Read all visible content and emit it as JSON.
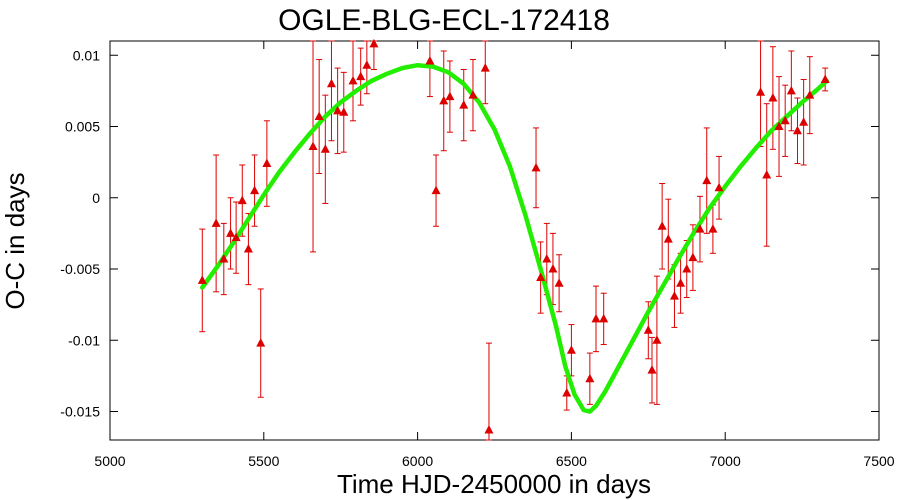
{
  "chart_data": {
    "type": "scatter",
    "title": "OGLE-BLG-ECL-172418",
    "xlabel": "Time HJD-2450000 in days",
    "ylabel": "O-C in days",
    "xlim": [
      5000,
      7500
    ],
    "ylim": [
      -0.017,
      0.011
    ],
    "xticks": [
      5000,
      5500,
      6000,
      6500,
      7000,
      7500
    ],
    "yticks": [
      -0.015,
      -0.01,
      -0.005,
      0,
      0.005,
      0.01
    ],
    "xtick_labels": [
      "5000",
      "5500",
      "6000",
      "6500",
      "7000",
      "7500"
    ],
    "ytick_labels": [
      "-0.015",
      "-0.01",
      "-0.005",
      "0",
      "0.005",
      "0.01"
    ],
    "grid": false,
    "legend": "none",
    "colors": {
      "points": "#dd0000",
      "fit": "#22ee00"
    },
    "observations": [
      {
        "x": 5300,
        "y": -0.0058,
        "err": 0.0036
      },
      {
        "x": 5345,
        "y": -0.0018,
        "err": 0.0048
      },
      {
        "x": 5370,
        "y": -0.0043,
        "err": 0.0025
      },
      {
        "x": 5392,
        "y": -0.0025,
        "err": 0.0025
      },
      {
        "x": 5410,
        "y": -0.0028,
        "err": 0.0025
      },
      {
        "x": 5430,
        "y": -0.0002,
        "err": 0.0025
      },
      {
        "x": 5450,
        "y": -0.0036,
        "err": 0.0025
      },
      {
        "x": 5470,
        "y": 0.0005,
        "err": 0.0025
      },
      {
        "x": 5490,
        "y": -0.0102,
        "err": 0.0038
      },
      {
        "x": 5510,
        "y": 0.0024,
        "err": 0.003
      },
      {
        "x": 5660,
        "y": 0.0036,
        "err": 0.0074
      },
      {
        "x": 5680,
        "y": 0.0057,
        "err": 0.004
      },
      {
        "x": 5700,
        "y": 0.0034,
        "err": 0.0038
      },
      {
        "x": 5720,
        "y": 0.008,
        "err": 0.004
      },
      {
        "x": 5740,
        "y": 0.0061,
        "err": 0.003
      },
      {
        "x": 5760,
        "y": 0.006,
        "err": 0.0028
      },
      {
        "x": 5790,
        "y": 0.0082,
        "err": 0.0028
      },
      {
        "x": 5815,
        "y": 0.0085,
        "err": 0.002
      },
      {
        "x": 5835,
        "y": 0.0093,
        "err": 0.002
      },
      {
        "x": 5858,
        "y": 0.0108,
        "err": 0.0018
      },
      {
        "x": 6040,
        "y": 0.0096,
        "err": 0.0025
      },
      {
        "x": 6060,
        "y": 0.0005,
        "err": 0.0025
      },
      {
        "x": 6085,
        "y": 0.0068,
        "err": 0.0035
      },
      {
        "x": 6105,
        "y": 0.0071,
        "err": 0.0025
      },
      {
        "x": 6150,
        "y": 0.0065,
        "err": 0.0025
      },
      {
        "x": 6180,
        "y": 0.0072,
        "err": 0.0025
      },
      {
        "x": 6220,
        "y": 0.0091,
        "err": 0.0025
      },
      {
        "x": 6232,
        "y": -0.0163,
        "err": 0.0061
      },
      {
        "x": 6385,
        "y": 0.0021,
        "err": 0.0028
      },
      {
        "x": 6400,
        "y": -0.0056,
        "err": 0.0025
      },
      {
        "x": 6420,
        "y": -0.0043,
        "err": 0.0025
      },
      {
        "x": 6440,
        "y": -0.005,
        "err": 0.0025
      },
      {
        "x": 6460,
        "y": -0.006,
        "err": 0.002
      },
      {
        "x": 6485,
        "y": -0.0137,
        "err": 0.0012
      },
      {
        "x": 6500,
        "y": -0.0107,
        "err": 0.0018
      },
      {
        "x": 6560,
        "y": -0.0127,
        "err": 0.0018
      },
      {
        "x": 6580,
        "y": -0.0085,
        "err": 0.0023
      },
      {
        "x": 6605,
        "y": -0.0085,
        "err": 0.0018
      },
      {
        "x": 6750,
        "y": -0.0093,
        "err": 0.002
      },
      {
        "x": 6762,
        "y": -0.0121,
        "err": 0.0023
      },
      {
        "x": 6778,
        "y": -0.01,
        "err": 0.0045
      },
      {
        "x": 6795,
        "y": -0.002,
        "err": 0.003
      },
      {
        "x": 6815,
        "y": -0.0029,
        "err": 0.0028
      },
      {
        "x": 6835,
        "y": -0.0069,
        "err": 0.0022
      },
      {
        "x": 6855,
        "y": -0.006,
        "err": 0.0021
      },
      {
        "x": 6875,
        "y": -0.005,
        "err": 0.002
      },
      {
        "x": 6895,
        "y": -0.0042,
        "err": 0.0023
      },
      {
        "x": 6918,
        "y": -0.0022,
        "err": 0.0023
      },
      {
        "x": 6940,
        "y": 0.0012,
        "err": 0.0037
      },
      {
        "x": 6960,
        "y": -0.0022,
        "err": 0.0017
      },
      {
        "x": 6980,
        "y": 0.0007,
        "err": 0.0022
      },
      {
        "x": 7115,
        "y": 0.0074,
        "err": 0.0038
      },
      {
        "x": 7135,
        "y": 0.0016,
        "err": 0.005
      },
      {
        "x": 7155,
        "y": 0.007,
        "err": 0.0036
      },
      {
        "x": 7175,
        "y": 0.005,
        "err": 0.0035
      },
      {
        "x": 7195,
        "y": 0.0054,
        "err": 0.0025
      },
      {
        "x": 7215,
        "y": 0.0075,
        "err": 0.0028
      },
      {
        "x": 7235,
        "y": 0.0047,
        "err": 0.0023
      },
      {
        "x": 7255,
        "y": 0.0053,
        "err": 0.003
      },
      {
        "x": 7275,
        "y": 0.0072,
        "err": 0.0027
      },
      {
        "x": 7325,
        "y": 0.0083,
        "err": 0.0008
      }
    ],
    "fit_curve": [
      [
        5300,
        -0.0063
      ],
      [
        5350,
        -0.0048
      ],
      [
        5400,
        -0.0032
      ],
      [
        5450,
        -0.0015
      ],
      [
        5500,
        0.0002
      ],
      [
        5550,
        0.0018
      ],
      [
        5600,
        0.0032
      ],
      [
        5650,
        0.0045
      ],
      [
        5700,
        0.0057
      ],
      [
        5750,
        0.0067
      ],
      [
        5800,
        0.0075
      ],
      [
        5850,
        0.0082
      ],
      [
        5900,
        0.0087
      ],
      [
        5950,
        0.0091
      ],
      [
        6000,
        0.0093
      ],
      [
        6050,
        0.0092
      ],
      [
        6100,
        0.0088
      ],
      [
        6150,
        0.008
      ],
      [
        6200,
        0.0067
      ],
      [
        6250,
        0.0048
      ],
      [
        6300,
        0.0022
      ],
      [
        6350,
        -0.0012
      ],
      [
        6400,
        -0.005
      ],
      [
        6450,
        -0.009
      ],
      [
        6480,
        -0.0118
      ],
      [
        6510,
        -0.0138
      ],
      [
        6540,
        -0.0149
      ],
      [
        6560,
        -0.015
      ],
      [
        6580,
        -0.0146
      ],
      [
        6610,
        -0.0136
      ],
      [
        6650,
        -0.012
      ],
      [
        6700,
        -0.01
      ],
      [
        6750,
        -0.008
      ],
      [
        6800,
        -0.0061
      ],
      [
        6850,
        -0.0042
      ],
      [
        6900,
        -0.0024
      ],
      [
        6950,
        -0.0007
      ],
      [
        7000,
        0.0008
      ],
      [
        7050,
        0.0022
      ],
      [
        7100,
        0.0035
      ],
      [
        7150,
        0.0047
      ],
      [
        7200,
        0.0057
      ],
      [
        7250,
        0.0067
      ],
      [
        7300,
        0.0076
      ],
      [
        7330,
        0.0082
      ]
    ]
  }
}
